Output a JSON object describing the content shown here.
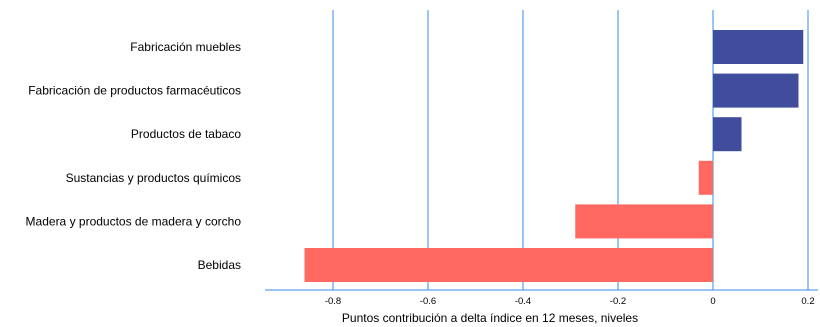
{
  "chart_data": {
    "type": "bar",
    "orientation": "horizontal",
    "title": "",
    "xlabel": "Puntos contribución a delta índice en 12 meses, niveles",
    "ylabel": "",
    "categories": [
      "Fabricación muebles",
      "Fabricación de productos farmacéuticos",
      "Productos de tabaco",
      "Sustancias y productos químicos",
      "Madera y productos de madera y corcho",
      "Bebidas"
    ],
    "values": [
      0.19,
      0.18,
      0.06,
      -0.03,
      -0.29,
      -0.86
    ],
    "xlim": [
      -0.95,
      0.2
    ],
    "xticks": [
      -0.8,
      -0.6,
      -0.4,
      -0.2,
      0,
      0.2
    ],
    "xtick_labels": [
      "-0.8",
      "-0.6",
      "-0.4",
      "-0.2",
      "0",
      "0.2"
    ],
    "grid": true,
    "colors": {
      "positive": "#3f4d9c",
      "negative": "#ff6962",
      "grid": "#3a8ee6",
      "axis": "#3a8ee6"
    }
  }
}
